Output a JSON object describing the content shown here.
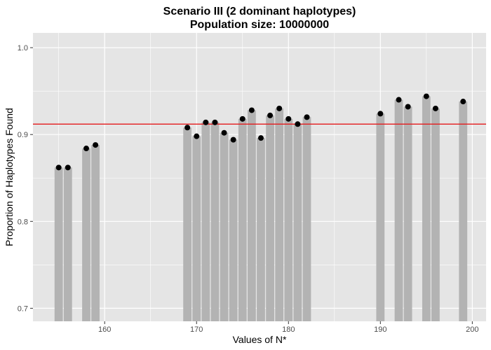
{
  "chart_data": {
    "type": "bar",
    "title": "Scenario III (2 dominant haplotypes)",
    "subtitle": "Population size: 10000000",
    "xlabel": "Values of N*",
    "ylabel": "Proportion of Haplotypes Found",
    "xlim": [
      152.2,
      201.5
    ],
    "ylim": [
      0.685,
      1.017
    ],
    "x_ticks": [
      160,
      170,
      180,
      190,
      200
    ],
    "x_tick_labels": [
      "160",
      "170",
      "180",
      "190",
      "200"
    ],
    "y_ticks": [
      0.7,
      0.8,
      0.9,
      1.0
    ],
    "y_tick_labels": [
      "0.7",
      "0.8",
      "0.9",
      "1.0"
    ],
    "grid": true,
    "reference_line": {
      "y": 0.912,
      "color": "#e41a1c"
    },
    "colors": {
      "panel": "#e5e5e5",
      "grid": "#ffffff",
      "bar": "#b3b3b3",
      "point": "#000000"
    },
    "x": [
      155,
      156,
      158,
      159,
      169,
      170,
      171,
      172,
      173,
      174,
      175,
      176,
      177,
      178,
      179,
      180,
      181,
      182,
      190,
      192,
      193,
      195,
      196,
      199
    ],
    "values": [
      0.862,
      0.862,
      0.884,
      0.888,
      0.908,
      0.898,
      0.914,
      0.914,
      0.902,
      0.894,
      0.918,
      0.928,
      0.896,
      0.922,
      0.93,
      0.918,
      0.912,
      0.92,
      0.924,
      0.94,
      0.932,
      0.944,
      0.93,
      0.938
    ]
  }
}
